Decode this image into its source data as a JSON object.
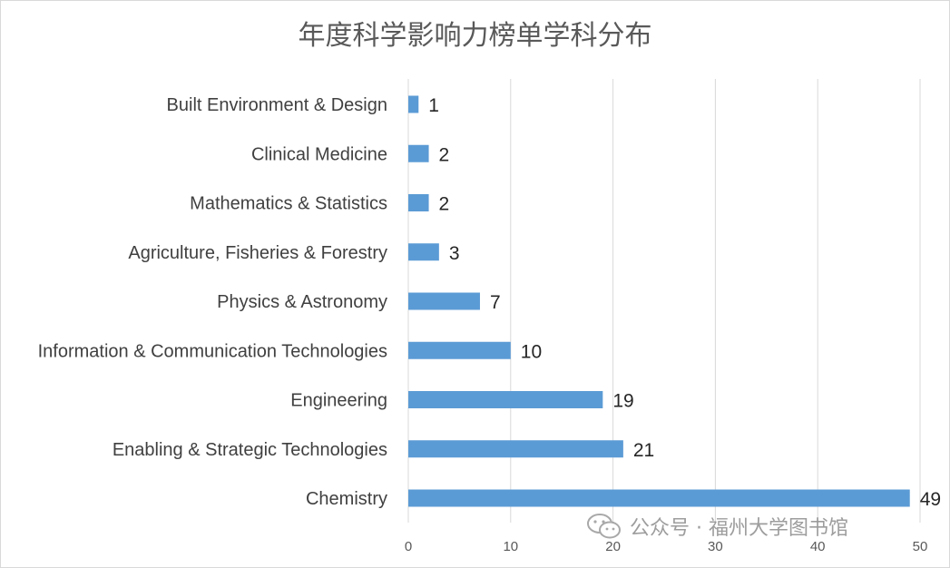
{
  "chart_data": {
    "type": "bar",
    "orientation": "horizontal",
    "title": "年度科学影响力榜单学科分布",
    "categories": [
      "Built Environment & Design",
      "Clinical Medicine",
      "Mathematics & Statistics",
      "Agriculture, Fisheries & Forestry",
      "Physics & Astronomy",
      "Information & Communication Technologies",
      "Engineering",
      "Enabling & Strategic Technologies",
      "Chemistry"
    ],
    "values": [
      1,
      2,
      2,
      3,
      7,
      10,
      19,
      21,
      49
    ],
    "xlim": [
      0,
      50
    ],
    "xticks": [
      0,
      10,
      20,
      30,
      40,
      50
    ],
    "grid": true,
    "legend": "none",
    "bar_color": "#5b9bd5"
  },
  "watermark": {
    "text": "公众号 · 福州大学图书馆",
    "icon": "wechat-icon"
  }
}
